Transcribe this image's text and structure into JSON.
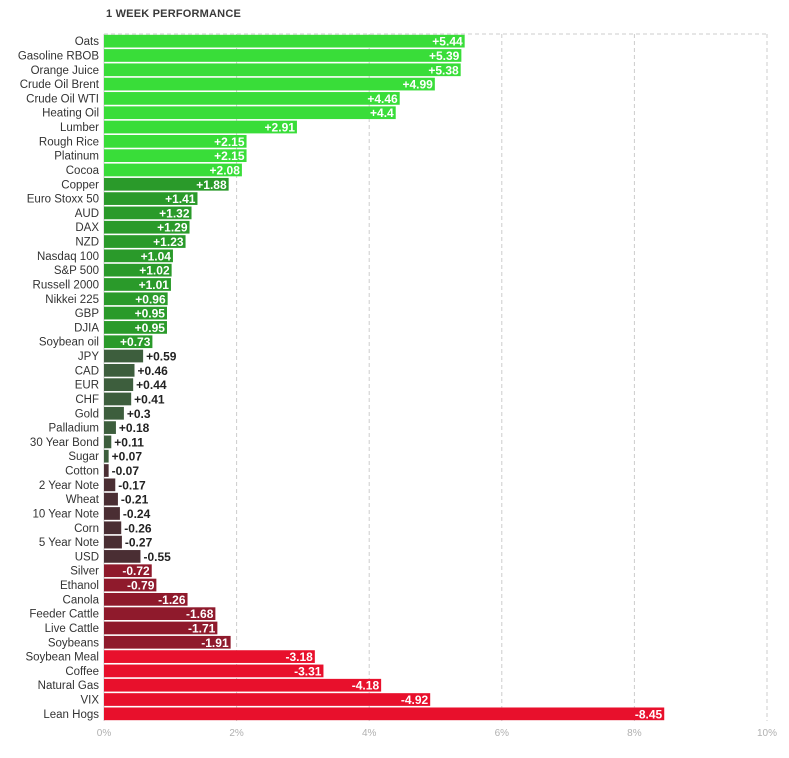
{
  "chart_data": {
    "type": "bar",
    "orientation": "horizontal",
    "title": "1 WEEK PERFORMANCE",
    "xlim": [
      0,
      10
    ],
    "x_ticks": [
      "0%",
      "2%",
      "4%",
      "6%",
      "8%",
      "10%"
    ],
    "grid": "vertical dashed",
    "categories": [
      "Oats",
      "Gasoline RBOB",
      "Orange Juice",
      "Crude Oil Brent",
      "Crude Oil WTI",
      "Heating Oil",
      "Lumber",
      "Rough Rice",
      "Platinum",
      "Cocoa",
      "Copper",
      "Euro Stoxx 50",
      "AUD",
      "DAX",
      "NZD",
      "Nasdaq 100",
      "S&P 500",
      "Russell 2000",
      "Nikkei 225",
      "GBP",
      "DJIA",
      "Soybean oil",
      "JPY",
      "CAD",
      "EUR",
      "CHF",
      "Gold",
      "Palladium",
      "30 Year Bond",
      "Sugar",
      "Cotton",
      "2 Year Note",
      "Wheat",
      "10 Year Note",
      "Corn",
      "5 Year Note",
      "USD",
      "Silver",
      "Ethanol",
      "Canola",
      "Feeder Cattle",
      "Live Cattle",
      "Soybeans",
      "Soybean Meal",
      "Coffee",
      "Natural Gas",
      "VIX",
      "Lean Hogs"
    ],
    "values": [
      5.44,
      5.39,
      5.38,
      4.99,
      4.46,
      4.4,
      2.91,
      2.15,
      2.15,
      2.08,
      1.88,
      1.41,
      1.32,
      1.29,
      1.23,
      1.04,
      1.02,
      1.01,
      0.96,
      0.95,
      0.95,
      0.73,
      0.59,
      0.46,
      0.44,
      0.41,
      0.3,
      0.18,
      0.11,
      0.07,
      -0.07,
      -0.17,
      -0.21,
      -0.24,
      -0.26,
      -0.27,
      -0.55,
      -0.72,
      -0.79,
      -1.26,
      -1.68,
      -1.71,
      -1.91,
      -3.18,
      -3.31,
      -4.18,
      -4.92,
      -8.45
    ],
    "value_labels": [
      "+5.44",
      "+5.39",
      "+5.38",
      "+4.99",
      "+4.46",
      "+4.4",
      "+2.91",
      "+2.15",
      "+2.15",
      "+2.08",
      "+1.88",
      "+1.41",
      "+1.32",
      "+1.29",
      "+1.23",
      "+1.04",
      "+1.02",
      "+1.01",
      "+0.96",
      "+0.95",
      "+0.95",
      "+0.73",
      "+0.59",
      "+0.46",
      "+0.44",
      "+0.41",
      "+0.3",
      "+0.18",
      "+0.11",
      "+0.07",
      "-0.07",
      "-0.17",
      "-0.21",
      "-0.24",
      "-0.26",
      "-0.27",
      "-0.55",
      "-0.72",
      "-0.79",
      "-1.26",
      "-1.68",
      "-1.71",
      "-1.91",
      "-3.18",
      "-3.31",
      "-4.18",
      "-4.92",
      "-8.45"
    ],
    "colors": {
      "positive_strong": "#39dd39",
      "positive_mid": "#2a9a2a",
      "positive_dark": "#3d5e3d",
      "negative_dark": "#4a2e33",
      "negative_mid": "#8f1a2c",
      "negative_strong": "#e8102c",
      "grid": "#cccccc"
    }
  }
}
